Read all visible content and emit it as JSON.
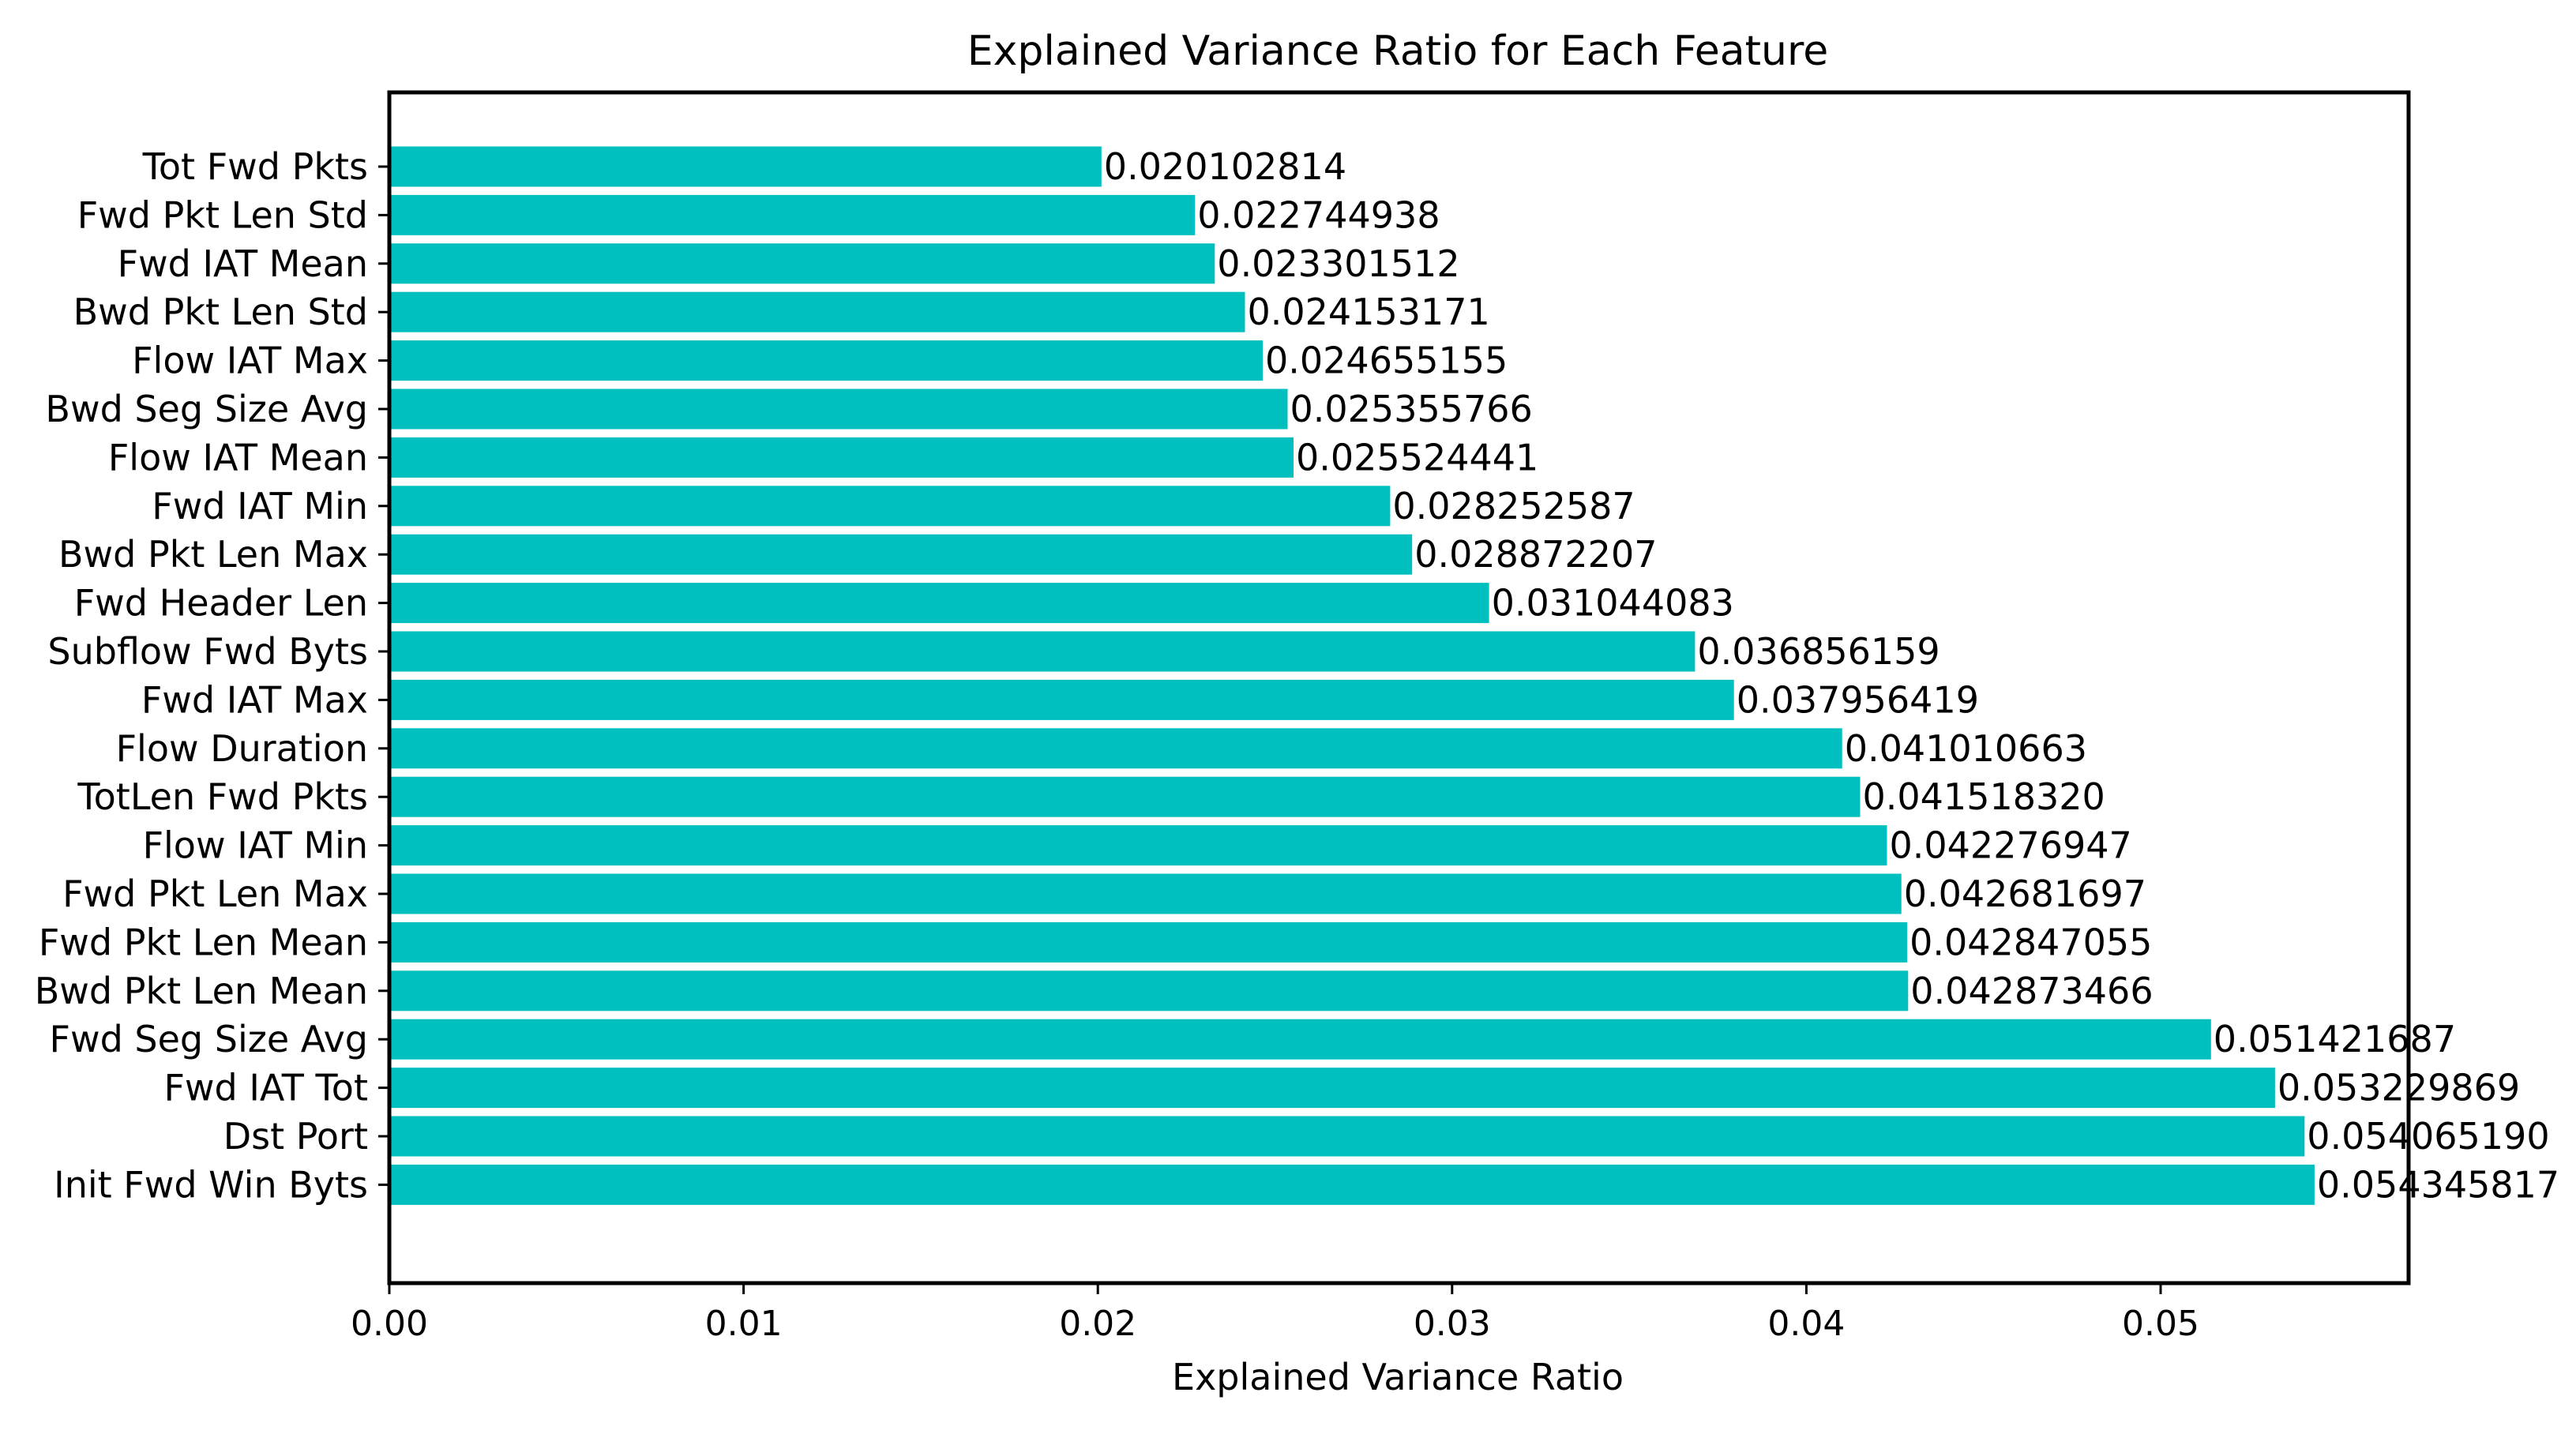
{
  "chart_data": {
    "type": "bar",
    "orientation": "horizontal",
    "title": "Explained Variance Ratio for Each Feature",
    "xlabel": "Explained Variance Ratio",
    "ylabel": "",
    "xlim": [
      0,
      0.057
    ],
    "xticks": [
      0.0,
      0.01,
      0.02,
      0.03,
      0.04,
      0.05
    ],
    "xtick_labels": [
      "0.00",
      "0.01",
      "0.02",
      "0.03",
      "0.04",
      "0.05"
    ],
    "grid": false,
    "bar_color": "#00bfbf",
    "categories": [
      "Tot Fwd Pkts",
      "Fwd Pkt Len Std",
      "Fwd IAT Mean",
      "Bwd Pkt Len Std",
      "Flow IAT Max",
      "Bwd Seg Size Avg",
      "Flow IAT Mean",
      "Fwd IAT Min",
      "Bwd Pkt Len Max",
      "Fwd Header Len",
      "Subflow Fwd Byts",
      "Fwd IAT Max",
      "Flow Duration",
      "TotLen Fwd Pkts",
      "Flow IAT Min",
      "Fwd Pkt Len Max",
      "Fwd Pkt Len Mean",
      "Bwd Pkt Len Mean",
      "Fwd Seg Size Avg",
      "Fwd IAT Tot",
      "Dst Port",
      "Init Fwd Win Byts"
    ],
    "values": [
      0.020102814,
      0.022744938,
      0.023301512,
      0.024153171,
      0.024655155,
      0.025355766,
      0.025524441,
      0.028252587,
      0.028872207,
      0.031044083,
      0.036856159,
      0.037956419,
      0.041010663,
      0.04151832,
      0.042276947,
      0.042681697,
      0.042847055,
      0.042873466,
      0.051421687,
      0.053229869,
      0.05406519,
      0.054345817
    ],
    "value_labels": [
      "0.020102814",
      "0.022744938",
      "0.023301512",
      "0.024153171",
      "0.024655155",
      "0.025355766",
      "0.025524441",
      "0.028252587",
      "0.028872207",
      "0.031044083",
      "0.036856159",
      "0.037956419",
      "0.041010663",
      "0.041518320",
      "0.042276947",
      "0.042681697",
      "0.042847055",
      "0.042873466",
      "0.051421687",
      "0.053229869",
      "0.054065190",
      "0.054345817"
    ]
  }
}
